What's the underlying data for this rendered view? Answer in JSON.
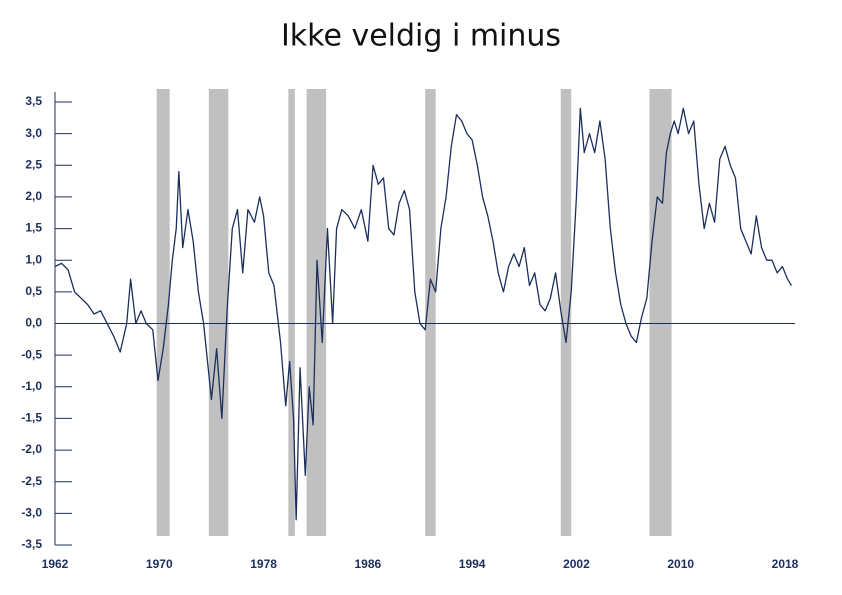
{
  "chart_data": {
    "type": "line",
    "title": "Ikke veldig i minus",
    "x": [
      1962.0,
      1962.5,
      1963.0,
      1963.5,
      1964.0,
      1964.5,
      1965.0,
      1965.5,
      1966.0,
      1966.5,
      1967.0,
      1967.5,
      1967.8,
      1968.2,
      1968.6,
      1969.0,
      1969.5,
      1969.9,
      1970.3,
      1970.7,
      1971.0,
      1971.3,
      1971.5,
      1971.8,
      1972.2,
      1972.6,
      1973.0,
      1973.4,
      1973.8,
      1974.0,
      1974.4,
      1974.8,
      1975.2,
      1975.6,
      1976.0,
      1976.4,
      1976.8,
      1977.3,
      1977.7,
      1978.0,
      1978.4,
      1978.8,
      1979.3,
      1979.7,
      1980.0,
      1980.3,
      1980.5,
      1980.8,
      1981.2,
      1981.5,
      1981.8,
      1982.1,
      1982.5,
      1982.9,
      1983.3,
      1983.6,
      1984.0,
      1984.5,
      1985.0,
      1985.5,
      1986.0,
      1986.4,
      1986.8,
      1987.2,
      1987.6,
      1988.0,
      1988.4,
      1988.8,
      1989.2,
      1989.6,
      1990.0,
      1990.4,
      1990.8,
      1991.2,
      1991.6,
      1992.0,
      1992.4,
      1992.8,
      1993.2,
      1993.6,
      1994.0,
      1994.4,
      1994.8,
      1995.2,
      1995.6,
      1996.0,
      1996.4,
      1996.8,
      1997.2,
      1997.6,
      1998.0,
      1998.4,
      1998.8,
      1999.2,
      1999.6,
      2000.0,
      2000.4,
      2000.8,
      2001.2,
      2001.6,
      2002.0,
      2002.3,
      2002.6,
      2003.0,
      2003.4,
      2003.8,
      2004.2,
      2004.6,
      2005.0,
      2005.4,
      2005.8,
      2006.2,
      2006.6,
      2007.0,
      2007.4,
      2007.8,
      2008.2,
      2008.6,
      2008.9,
      2009.2,
      2009.5,
      2009.8,
      2010.2,
      2010.6,
      2011.0,
      2011.4,
      2011.8,
      2012.2,
      2012.6,
      2013.0,
      2013.4,
      2013.8,
      2014.2,
      2014.6,
      2015.0,
      2015.4,
      2015.8,
      2016.2,
      2016.6,
      2017.0,
      2017.4,
      2017.8,
      2018.2,
      2018.5
    ],
    "series": [
      {
        "color": "#1b2f5e",
        "values": [
          0.9,
          0.95,
          0.85,
          0.5,
          0.4,
          0.3,
          0.15,
          0.2,
          0.0,
          -0.2,
          -0.45,
          0.0,
          0.7,
          0.0,
          0.2,
          0.0,
          -0.1,
          -0.9,
          -0.4,
          0.3,
          1.0,
          1.5,
          2.4,
          1.2,
          1.8,
          1.3,
          0.5,
          0.0,
          -0.8,
          -1.2,
          -0.4,
          -1.5,
          0.2,
          1.5,
          1.8,
          0.8,
          1.8,
          1.6,
          2.0,
          1.7,
          0.8,
          0.6,
          -0.3,
          -1.3,
          -0.6,
          -1.5,
          -3.1,
          -0.7,
          -2.4,
          -1.0,
          -1.6,
          1.0,
          -0.3,
          1.5,
          0.0,
          1.5,
          1.8,
          1.7,
          1.5,
          1.8,
          1.3,
          2.5,
          2.2,
          2.3,
          1.5,
          1.4,
          1.9,
          2.1,
          1.8,
          0.5,
          0.0,
          -0.1,
          0.7,
          0.5,
          1.5,
          2.0,
          2.8,
          3.3,
          3.2,
          3.0,
          2.9,
          2.5,
          2.0,
          1.7,
          1.3,
          0.8,
          0.5,
          0.9,
          1.1,
          0.9,
          1.2,
          0.6,
          0.8,
          0.3,
          0.2,
          0.4,
          0.8,
          0.2,
          -0.3,
          0.5,
          2.0,
          3.4,
          2.7,
          3.0,
          2.7,
          3.2,
          2.6,
          1.5,
          0.8,
          0.3,
          0.0,
          -0.2,
          -0.3,
          0.1,
          0.4,
          1.3,
          2.0,
          1.9,
          2.7,
          3.0,
          3.2,
          3.0,
          3.4,
          3.0,
          3.2,
          2.2,
          1.5,
          1.9,
          1.6,
          2.6,
          2.8,
          2.5,
          2.3,
          1.5,
          1.3,
          1.1,
          1.7,
          1.2,
          1.0,
          1.0,
          0.8,
          0.9,
          0.7,
          0.6
        ]
      }
    ],
    "recessions": [
      [
        1969.8,
        1970.8
      ],
      [
        1973.8,
        1975.3
      ],
      [
        1979.9,
        1980.4
      ],
      [
        1981.3,
        1982.8
      ],
      [
        1990.4,
        1991.2
      ],
      [
        2000.8,
        2001.6
      ],
      [
        2007.6,
        2009.3
      ]
    ],
    "recession_color": "#c0c0c0",
    "xlim": [
      1962,
      2018
    ],
    "xticks": [
      1962,
      1970,
      1978,
      1986,
      1994,
      2002,
      2010,
      2018
    ],
    "ylim": [
      -3.5,
      3.5
    ],
    "yticks": [
      {
        "value": 3.5,
        "label": "3,5"
      },
      {
        "value": 3.0,
        "label": "3,0"
      },
      {
        "value": 2.5,
        "label": "2,5"
      },
      {
        "value": 2.0,
        "label": "2,0"
      },
      {
        "value": 1.5,
        "label": "1,5"
      },
      {
        "value": 1.0,
        "label": "1,0"
      },
      {
        "value": 0.5,
        "label": "0,5"
      },
      {
        "value": 0.0,
        "label": "0,0"
      },
      {
        "value": -0.5,
        "label": "-0,5"
      },
      {
        "value": -1.0,
        "label": "-1,0"
      },
      {
        "value": -1.5,
        "label": "-1,5"
      },
      {
        "value": -2.0,
        "label": "-2,0"
      },
      {
        "value": -2.5,
        "label": "-2,5"
      },
      {
        "value": -3.0,
        "label": "-3,0"
      },
      {
        "value": -3.5,
        "label": "-3,5"
      }
    ]
  }
}
